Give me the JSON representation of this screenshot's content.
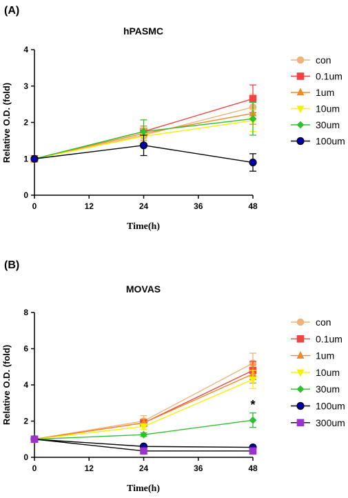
{
  "chart_data": [
    {
      "type": "line",
      "panel_label": "(A)",
      "title": "hPASMC",
      "xlabel": "Time(h)",
      "ylabel": "Relative O.D. (fold)",
      "x": [
        0,
        24,
        48
      ],
      "xlim": [
        0,
        48
      ],
      "ylim": [
        0,
        4
      ],
      "xticks": [
        0,
        12,
        24,
        36,
        48
      ],
      "yticks": [
        0,
        1,
        2,
        3,
        4
      ],
      "grid": false,
      "legend": "right",
      "annotations": [],
      "series": [
        {
          "name": "con",
          "color": "#f0b27a",
          "marker": "circle",
          "values": [
            1.0,
            1.65,
            2.42
          ],
          "errors": [
            0,
            0.1,
            0.35
          ]
        },
        {
          "name": "0.1um",
          "color": "#ee4444",
          "marker": "square",
          "values": [
            1.0,
            1.75,
            2.65
          ],
          "errors": [
            0,
            0.15,
            0.38
          ]
        },
        {
          "name": "1um",
          "color": "#f08a24",
          "marker": "triangle-up",
          "values": [
            1.0,
            1.7,
            2.25
          ],
          "errors": [
            0,
            0.2,
            0.3
          ]
        },
        {
          "name": "10um",
          "color": "#f7f000",
          "marker": "triangle-down",
          "values": [
            1.0,
            1.62,
            2.05
          ],
          "errors": [
            0,
            0.2,
            0.3
          ]
        },
        {
          "name": "30um",
          "color": "#2fc02f",
          "marker": "diamond",
          "values": [
            1.0,
            1.75,
            2.1
          ],
          "errors": [
            0,
            0.32,
            0.45
          ]
        },
        {
          "name": "100um",
          "color": "#0000aa",
          "marker": "circle",
          "values": [
            1.0,
            1.37,
            0.9
          ],
          "errors": [
            0,
            0.28,
            0.24
          ]
        }
      ]
    },
    {
      "type": "line",
      "panel_label": "(B)",
      "title": "MOVAS",
      "xlabel": "Time(h)",
      "ylabel": "Relative O.D. (fold)",
      "x": [
        0,
        24,
        48
      ],
      "xlim": [
        0,
        48
      ],
      "ylim": [
        0,
        8
      ],
      "xticks": [
        0,
        12,
        24,
        36,
        48
      ],
      "yticks": [
        0,
        2,
        4,
        6,
        8
      ],
      "grid": false,
      "legend": "right",
      "annotations": [
        {
          "text": "*",
          "x": 48,
          "y": 2.9
        }
      ],
      "series": [
        {
          "name": "con",
          "color": "#f0b27a",
          "marker": "circle",
          "values": [
            1.0,
            2.0,
            5.2
          ],
          "errors": [
            0,
            0.3,
            0.55
          ]
        },
        {
          "name": "0.1um",
          "color": "#ee4444",
          "marker": "square",
          "values": [
            1.0,
            1.9,
            4.8
          ],
          "errors": [
            0,
            0.2,
            0.5
          ]
        },
        {
          "name": "1um",
          "color": "#f08a24",
          "marker": "triangle-up",
          "values": [
            1.0,
            1.9,
            4.6
          ],
          "errors": [
            0,
            0.2,
            0.5
          ]
        },
        {
          "name": "10um",
          "color": "#f7f000",
          "marker": "triangle-down",
          "values": [
            1.0,
            1.7,
            4.3
          ],
          "errors": [
            0,
            0.15,
            0.5
          ]
        },
        {
          "name": "30um",
          "color": "#2fc02f",
          "marker": "diamond",
          "values": [
            1.0,
            1.25,
            2.05
          ],
          "errors": [
            0,
            0.1,
            0.4
          ]
        },
        {
          "name": "100um",
          "color": "#0000aa",
          "marker": "circle",
          "values": [
            1.0,
            0.6,
            0.55
          ],
          "errors": [
            0,
            0.05,
            0.05
          ]
        },
        {
          "name": "300um",
          "color": "#9933cc",
          "marker": "square",
          "values": [
            1.0,
            0.35,
            0.35
          ],
          "errors": [
            0,
            0.05,
            0.05
          ]
        }
      ]
    }
  ]
}
